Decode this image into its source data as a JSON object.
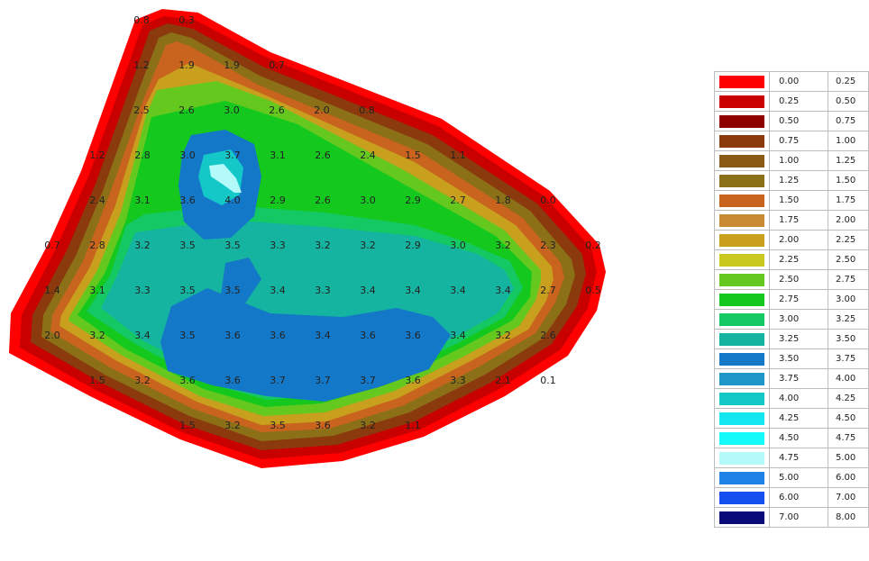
{
  "legend": [
    {
      "from": "0.00",
      "to": "0.25",
      "color": "#ff0000"
    },
    {
      "from": "0.25",
      "to": "0.50",
      "color": "#c80000"
    },
    {
      "from": "0.50",
      "to": "0.75",
      "color": "#8c0000"
    },
    {
      "from": "0.75",
      "to": "1.00",
      "color": "#8a3a0c"
    },
    {
      "from": "1.00",
      "to": "1.25",
      "color": "#8a5a14"
    },
    {
      "from": "1.25",
      "to": "1.50",
      "color": "#8c7018"
    },
    {
      "from": "1.50",
      "to": "1.75",
      "color": "#c8641e"
    },
    {
      "from": "1.75",
      "to": "2.00",
      "color": "#c88a32"
    },
    {
      "from": "2.00",
      "to": "2.25",
      "color": "#c8a01e"
    },
    {
      "from": "2.25",
      "to": "2.50",
      "color": "#c8c81e"
    },
    {
      "from": "2.50",
      "to": "2.75",
      "color": "#64c81e"
    },
    {
      "from": "2.75",
      "to": "3.00",
      "color": "#14c81e"
    },
    {
      "from": "3.00",
      "to": "3.25",
      "color": "#14c864"
    },
    {
      "from": "3.25",
      "to": "3.50",
      "color": "#14b4a0"
    },
    {
      "from": "3.50",
      "to": "3.75",
      "color": "#1478c8"
    },
    {
      "from": "3.75",
      "to": "4.00",
      "color": "#1e96c8"
    },
    {
      "from": "4.00",
      "to": "4.25",
      "color": "#14c8c8"
    },
    {
      "from": "4.25",
      "to": "4.50",
      "color": "#14e6f0"
    },
    {
      "from": "4.50",
      "to": "4.75",
      "color": "#14fafa"
    },
    {
      "from": "4.75",
      "to": "5.00",
      "color": "#b4fafa"
    },
    {
      "from": "5.00",
      "to": "6.00",
      "color": "#1e82e6"
    },
    {
      "from": "6.00",
      "to": "7.00",
      "color": "#1450f0"
    },
    {
      "from": "7.00",
      "to": "8.00",
      "color": "#0a0a78"
    }
  ],
  "grid_values": [
    [
      "0.8",
      "0.3"
    ],
    [
      "1.2",
      "1.9",
      "1.9",
      "0.7"
    ],
    [
      "2.5",
      "2.6",
      "3.0",
      "2.6",
      "2.0",
      "0.8"
    ],
    [
      "1.2",
      "2.8",
      "3.0",
      "3.7",
      "3.1",
      "2.6",
      "2.4",
      "1.5",
      "1.1"
    ],
    [
      "2.4",
      "3.1",
      "3.6",
      "4.0",
      "2.9",
      "2.6",
      "3.0",
      "2.9",
      "2.7",
      "1.8",
      "0.0"
    ],
    [
      "0.7",
      "2.8",
      "3.2",
      "3.5",
      "3.5",
      "3.3",
      "3.2",
      "3.2",
      "2.9",
      "3.0",
      "3.2",
      "2.3",
      "0.2"
    ],
    [
      "1.4",
      "3.1",
      "3.3",
      "3.5",
      "3.5",
      "3.4",
      "3.3",
      "3.4",
      "3.4",
      "3.4",
      "3.4",
      "2.7",
      "0.5"
    ],
    [
      "2.0",
      "3.2",
      "3.4",
      "3.5",
      "3.6",
      "3.6",
      "3.4",
      "3.6",
      "3.6",
      "3.4",
      "3.2",
      "2.6"
    ],
    [
      "1.5",
      "3.2",
      "3.6",
      "3.6",
      "3.7",
      "3.7",
      "3.7",
      "3.6",
      "3.3",
      "2.1",
      "0.1"
    ],
    [
      "1.5",
      "3.2",
      "3.5",
      "3.6",
      "3.2",
      "1.1"
    ]
  ]
}
